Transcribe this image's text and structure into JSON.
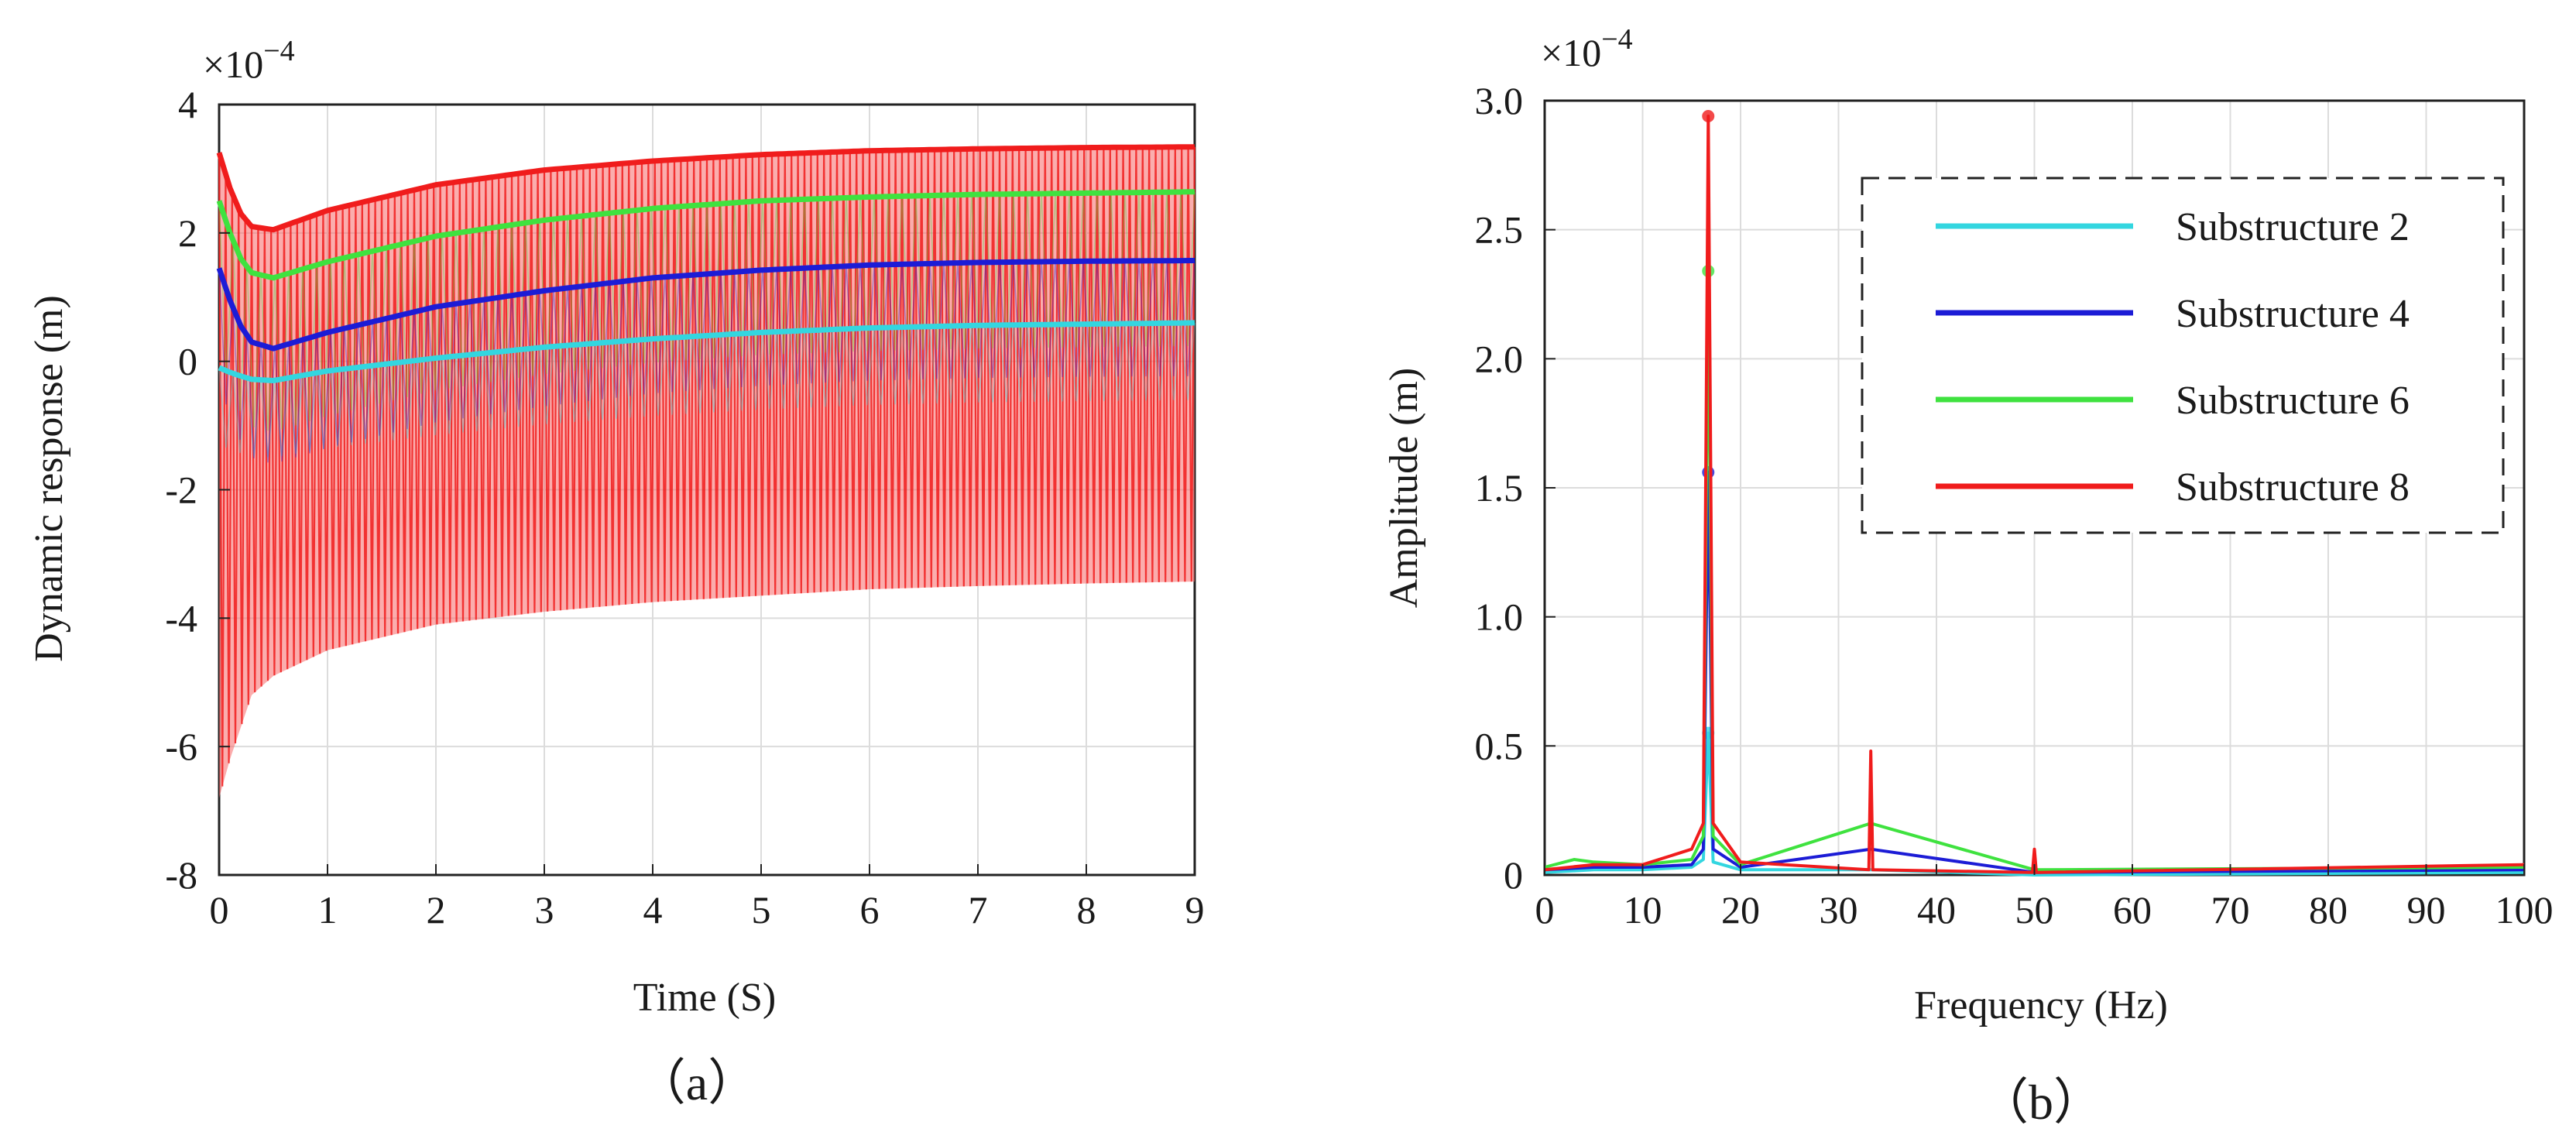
{
  "chart_data": [
    {
      "type": "line",
      "panel": "a",
      "caption": "（a）",
      "xlabel": "Time (S)",
      "ylabel": "Dynamic response (m)",
      "y_multiplier": "×10",
      "y_multiplier_exp": "−4",
      "xlim": [
        0,
        9
      ],
      "ylim": [
        -8,
        4
      ],
      "xticks": [
        0,
        1,
        2,
        3,
        4,
        5,
        6,
        7,
        8,
        9
      ],
      "yticks": [
        -8,
        -6,
        -4,
        -2,
        0,
        2,
        4
      ],
      "grid": true,
      "series": [
        {
          "name": "Substructure 2",
          "color": "#33d6e0",
          "x": [
            0,
            0.1,
            0.2,
            0.3,
            0.5,
            1,
            2,
            3,
            4,
            5,
            6,
            7,
            8,
            9
          ],
          "values": [
            -0.1,
            -0.17,
            -0.23,
            -0.28,
            -0.3,
            -0.15,
            0.05,
            0.22,
            0.35,
            0.45,
            0.52,
            0.56,
            0.58,
            0.6
          ]
        },
        {
          "name": "Substructure 4",
          "color": "#1c1cd6",
          "x": [
            0,
            0.1,
            0.2,
            0.3,
            0.5,
            1,
            2,
            3,
            4,
            5,
            6,
            7,
            8,
            9
          ],
          "values": [
            1.45,
            0.95,
            0.55,
            0.3,
            0.2,
            0.45,
            0.85,
            1.1,
            1.3,
            1.42,
            1.5,
            1.54,
            1.56,
            1.57
          ]
        },
        {
          "name": "Substructure 6",
          "color": "#3fe23f",
          "x": [
            0,
            0.1,
            0.2,
            0.3,
            0.5,
            1,
            2,
            3,
            4,
            5,
            6,
            7,
            8,
            9
          ],
          "values": [
            2.5,
            2.0,
            1.6,
            1.38,
            1.3,
            1.55,
            1.95,
            2.2,
            2.38,
            2.5,
            2.56,
            2.6,
            2.62,
            2.64
          ]
        },
        {
          "name": "Substructure 8",
          "color": "#f01c1c",
          "x": [
            0,
            0.1,
            0.2,
            0.3,
            0.5,
            1,
            2,
            3,
            4,
            5,
            6,
            7,
            8,
            9
          ],
          "values": [
            3.25,
            2.7,
            2.3,
            2.1,
            2.05,
            2.35,
            2.75,
            2.98,
            3.12,
            3.22,
            3.28,
            3.31,
            3.33,
            3.34
          ]
        }
      ],
      "oscillation_envelope": {
        "x": [
          0,
          0.1,
          0.3,
          0.5,
          1,
          2,
          3,
          4,
          5,
          6,
          7,
          8,
          9
        ],
        "upper": [
          3.25,
          2.7,
          2.1,
          2.05,
          2.35,
          2.75,
          2.98,
          3.12,
          3.22,
          3.28,
          3.31,
          3.33,
          3.34
        ],
        "lower": [
          -6.8,
          -6.2,
          -5.2,
          -4.9,
          -4.5,
          -4.1,
          -3.9,
          -3.75,
          -3.65,
          -3.55,
          -3.5,
          -3.46,
          -3.43
        ]
      }
    },
    {
      "type": "line",
      "panel": "b",
      "caption": "（b）",
      "xlabel": "Frequency (Hz)",
      "ylabel": "Amplitude (m)",
      "y_multiplier": "×10",
      "y_multiplier_exp": "−4",
      "xlim": [
        0,
        100
      ],
      "ylim": [
        0,
        3.0
      ],
      "xticks": [
        0,
        10,
        20,
        30,
        40,
        50,
        60,
        70,
        80,
        90,
        100
      ],
      "yticks": [
        0,
        0.5,
        1.0,
        1.5,
        2.0,
        2.5,
        3.0
      ],
      "ytick_labels": [
        "0",
        "0.5",
        "1.0",
        "1.5",
        "2.0",
        "2.5",
        "3.0"
      ],
      "grid": true,
      "legend_position": "top-right",
      "series": [
        {
          "name": "Substructure 2",
          "color": "#33d6e0",
          "x": [
            0,
            5,
            10,
            15,
            16.2,
            16.7,
            17.2,
            20,
            33.3,
            50,
            100
          ],
          "values": [
            0.01,
            0.02,
            0.02,
            0.03,
            0.06,
            0.55,
            0.05,
            0.02,
            0.02,
            0.0,
            0.01
          ]
        },
        {
          "name": "Substructure 4",
          "color": "#1c1cd6",
          "x": [
            0,
            5,
            10,
            15,
            16.2,
            16.7,
            17.2,
            20,
            33.3,
            50,
            100
          ],
          "values": [
            0.02,
            0.03,
            0.03,
            0.04,
            0.1,
            1.56,
            0.1,
            0.03,
            0.1,
            0.01,
            0.02
          ]
        },
        {
          "name": "Substructure 6",
          "color": "#3fe23f",
          "x": [
            0,
            3,
            5,
            10,
            15,
            16.2,
            16.7,
            17.2,
            20,
            33.3,
            50,
            100
          ],
          "values": [
            0.03,
            0.06,
            0.05,
            0.04,
            0.06,
            0.15,
            2.34,
            0.15,
            0.04,
            0.2,
            0.02,
            0.03
          ]
        },
        {
          "name": "Substructure 8",
          "color": "#f01c1c",
          "x": [
            0,
            5,
            10,
            15,
            16.2,
            16.7,
            17.2,
            20,
            33.1,
            33.3,
            33.5,
            49.8,
            50,
            50.2,
            100
          ],
          "values": [
            0.02,
            0.04,
            0.04,
            0.1,
            0.2,
            2.94,
            0.2,
            0.05,
            0.02,
            0.48,
            0.02,
            0.01,
            0.1,
            0.01,
            0.04
          ]
        }
      ]
    }
  ]
}
